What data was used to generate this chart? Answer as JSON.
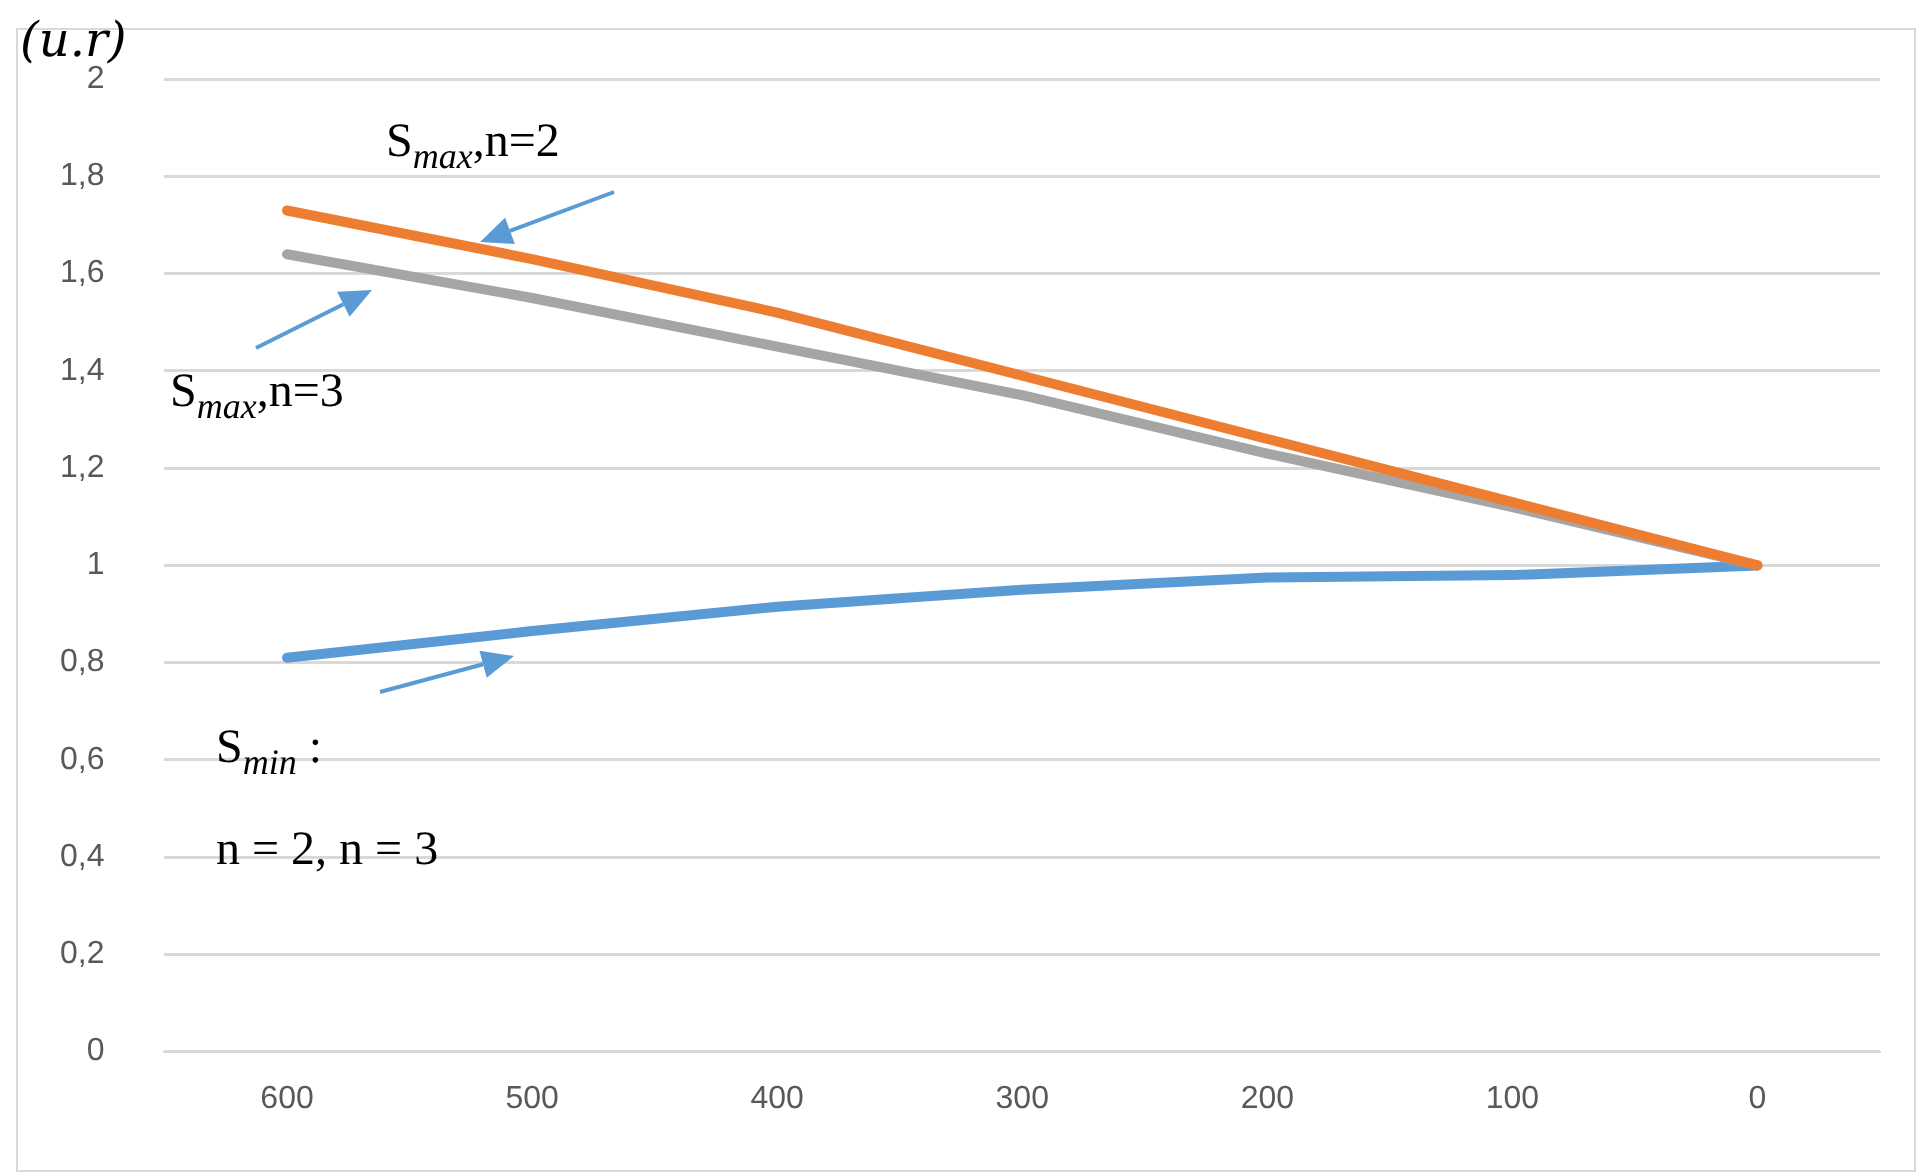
{
  "chart_data": {
    "type": "line",
    "ylabel": "(u.r)",
    "categories": [
      "600",
      "500",
      "400",
      "300",
      "200",
      "100",
      "0"
    ],
    "series": [
      {
        "color": "#ed7d31",
        "values": [
          1.73,
          1.63,
          1.52,
          1.39,
          1.26,
          1.13,
          1.0
        ]
      },
      {
        "color": "#a5a5a5",
        "values": [
          1.64,
          1.55,
          1.45,
          1.35,
          1.23,
          1.12,
          1.0
        ]
      },
      {
        "color": "#5b9bd5",
        "values": [
          0.81,
          0.865,
          0.915,
          0.95,
          0.975,
          0.98,
          1.0
        ]
      }
    ],
    "annotations": [
      "S$_{max}$,n=2",
      "S$_{max}$,n=3",
      "S$_{min}$ :\nn = 2, n = 3"
    ],
    "ylim": [
      0,
      2
    ],
    "yticks": [
      0,
      {
        "value": 0.2,
        "label": "0,2"
      },
      {
        "value": 0.4,
        "label": "0,4"
      },
      {
        "value": 0.6,
        "label": "0,6"
      },
      {
        "value": 0.8,
        "label": "0,8"
      },
      1,
      {
        "value": 1.2,
        "label": "1,2"
      },
      {
        "value": 1.4,
        "label": "1,4"
      },
      {
        "value": 1.6,
        "label": "1,6"
      },
      {
        "value": 1.8,
        "label": "1,8"
      },
      2
    ],
    "grid": "y",
    "legend": false,
    "marker": "none",
    "line_style": "solid"
  }
}
